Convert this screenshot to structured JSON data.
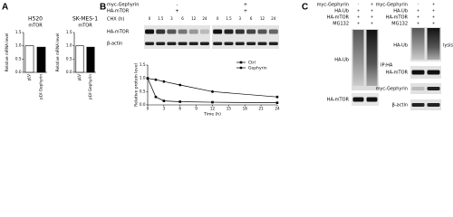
{
  "panel_labels": [
    "A",
    "B",
    "C"
  ],
  "chart_data": [
    {
      "type": "bar",
      "title": "H520",
      "subtitle": "mTOR",
      "y_label": "Relative mRNA level",
      "categories": [
        "pLV",
        "pLV-Gephyrin"
      ],
      "values": [
        1.0,
        0.95
      ],
      "colors": [
        "#ffffff",
        "#000000"
      ],
      "ylim": [
        0,
        1.5
      ],
      "yticks": [
        {
          "value": 0,
          "label": "0.0"
        },
        0.5,
        {
          "value": 1,
          "label": "1.0"
        },
        1.5
      ]
    },
    {
      "type": "bar",
      "title": "SK-MES-1",
      "subtitle": "mTOR",
      "y_label": "Relative mRNA level",
      "categories": [
        "pLV",
        "pLV-Gephyrin"
      ],
      "values": [
        1.0,
        0.95
      ],
      "colors": [
        "#ffffff",
        "#000000"
      ],
      "ylim": [
        0,
        1.5
      ],
      "yticks": [
        {
          "value": 0,
          "label": "0.0"
        },
        0.5,
        {
          "value": 1,
          "label": "1.0"
        },
        1.5
      ]
    },
    {
      "type": "line",
      "y_label": "Relative protein level",
      "x_label": "Time (h)",
      "x": [
        0,
        1.5,
        3,
        6,
        12,
        24
      ],
      "series": [
        {
          "name": "Ctrl",
          "color": "#000000",
          "marker": "square",
          "values": [
            1.0,
            0.3,
            0.15,
            0.12,
            0.1,
            0.08
          ]
        },
        {
          "name": "Gephyrin",
          "color": "#000000",
          "marker": "circle",
          "values": [
            1.0,
            0.95,
            0.88,
            0.75,
            0.5,
            0.3
          ]
        }
      ],
      "xlim": [
        0,
        24
      ],
      "xticks": [
        0,
        3,
        6,
        9,
        12,
        15,
        18,
        21,
        24
      ],
      "ylim": [
        0,
        1.5
      ],
      "yticks": [
        {
          "value": 0,
          "label": "0.0"
        },
        0.5,
        {
          "value": 1,
          "label": "1.0"
        },
        1.5
      ],
      "legend": "upper right"
    }
  ],
  "blot_b": {
    "conditions": [
      {
        "label": "myc-Gephyrin",
        "values": [
          "-",
          "+"
        ]
      },
      {
        "label": "HA-mTOR",
        "values": [
          "+",
          "+"
        ]
      },
      {
        "label": "CHX (h)",
        "values": [
          "0",
          "1.5",
          "3",
          "6",
          "12",
          "24",
          "0",
          "1.5",
          "3",
          "6",
          "12",
          "24"
        ]
      }
    ],
    "bands": [
      "HA-mTOR",
      "β-actin"
    ]
  },
  "blot_c_ip": {
    "conditions": [
      {
        "label": "myc-Gephyrin",
        "values": [
          "-",
          "+"
        ]
      },
      {
        "label": "HA-Ub",
        "values": [
          "+",
          "+"
        ]
      },
      {
        "label": "HA-mTOR",
        "values": [
          "+",
          "+"
        ]
      },
      {
        "label": "MG132",
        "values": [
          "+",
          "+"
        ]
      }
    ],
    "bands": [
      "HA-Ub",
      "HA-mTOR"
    ],
    "note": "IP:HA"
  },
  "blot_c_lysis": {
    "conditions": [
      {
        "label": "myc-Gephyrin",
        "values": [
          "-",
          "+"
        ]
      },
      {
        "label": "HA-Ub",
        "values": [
          "+",
          "+"
        ]
      },
      {
        "label": "HA-mTOR",
        "values": [
          "+",
          "+"
        ]
      },
      {
        "label": "MG132",
        "values": [
          "+",
          "+"
        ]
      }
    ],
    "bands": [
      "HA-Ub",
      "HA-mTOR",
      "myc-Gephyrin",
      "β-actin"
    ],
    "note": "lysis"
  }
}
